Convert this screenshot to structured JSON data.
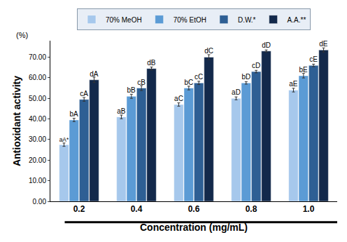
{
  "chart_data": {
    "type": "bar",
    "y_label": "Antioxidant activity",
    "x_label": "Concentration (mg/mL)",
    "annotations": [
      "(%)"
    ],
    "categories": [
      "0.2",
      "0.4",
      "0.6",
      "0.8",
      "1.0"
    ],
    "series": [
      {
        "name": "70% MeOH",
        "color": "#a6c8ec",
        "values": [
          27.5,
          41.0,
          47.0,
          50.0,
          54.0
        ],
        "errors": [
          0.8,
          0.9,
          0.8,
          0.7,
          0.9
        ],
        "annotations": [
          "aA*",
          "aB",
          "aC",
          "aD",
          "aE"
        ]
      },
      {
        "name": "70% EtOH",
        "color": "#5b9bd5",
        "values": [
          39.5,
          51.0,
          55.0,
          57.5,
          61.0
        ],
        "errors": [
          0.8,
          1.0,
          0.9,
          0.6,
          1.1
        ],
        "annotations": [
          "bA",
          "bB",
          "bC",
          "bD",
          "bE"
        ]
      },
      {
        "name": "D.W.*",
        "color": "#2e5f94",
        "values": [
          49.5,
          55.0,
          57.5,
          63.0,
          66.0
        ],
        "errors": [
          0.9,
          1.2,
          0.8,
          0.6,
          0.6
        ],
        "annotations": [
          "cA",
          "cB",
          "cC",
          "cD",
          "cE"
        ]
      },
      {
        "name": "A.A.**",
        "color": "#13294b",
        "values": [
          59.0,
          64.5,
          70.0,
          73.0,
          73.5
        ],
        "errors": [
          1.3,
          0.7,
          1.2,
          0.5,
          1.0
        ],
        "annotations": [
          "dA",
          "dB",
          "dC",
          "dD",
          "dE"
        ]
      }
    ],
    "ylim": [
      0,
      78
    ],
    "yticks": [
      {
        "value": 0,
        "label": "0.00"
      },
      {
        "value": 10,
        "label": "10.00"
      },
      {
        "value": 20,
        "label": "20.00"
      },
      {
        "value": 30,
        "label": "30.00"
      },
      {
        "value": 40,
        "label": "40.00"
      },
      {
        "value": 50,
        "label": "50.00"
      },
      {
        "value": 60,
        "label": "60.00"
      },
      {
        "value": 70,
        "label": "70.00"
      }
    ],
    "grid": false,
    "legend": "top"
  }
}
